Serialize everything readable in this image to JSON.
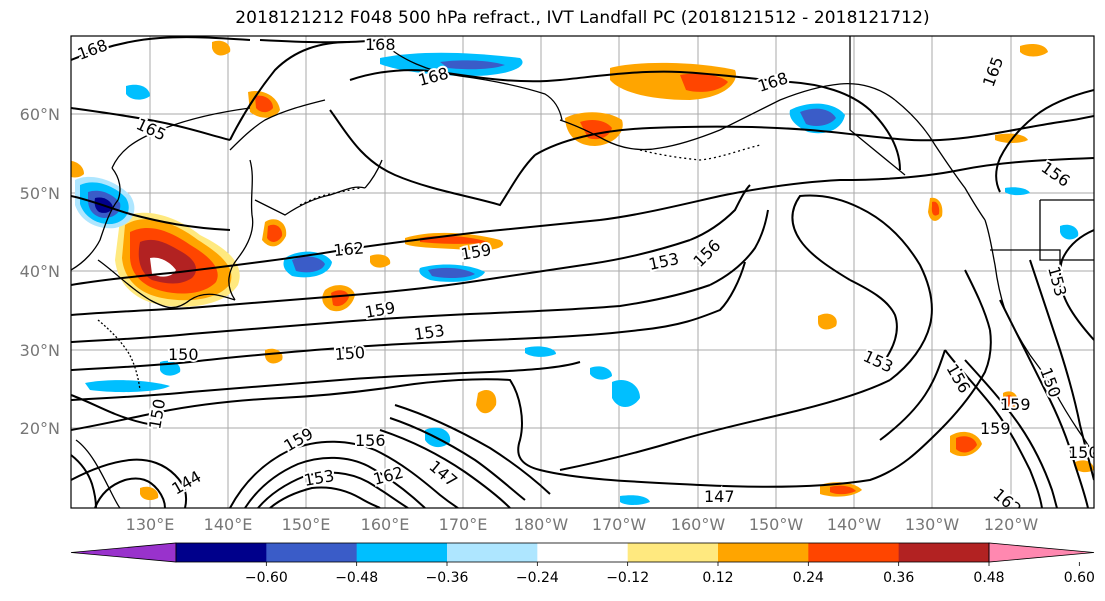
{
  "title": "2018121212 F048 500 hPa refract., IVT Landfall PC (2018121512 - 2018121712)",
  "lat_labels": [
    "60°N",
    "50°N",
    "40°N",
    "30°N",
    "20°N"
  ],
  "lon_labels": [
    "130°E",
    "140°E",
    "150°E",
    "160°E",
    "170°E",
    "180°W",
    "170°W",
    "160°W",
    "150°W",
    "140°W",
    "130°W",
    "120°W"
  ],
  "contour_labels": [
    "168",
    "168",
    "168",
    "168",
    "165",
    "165",
    "162",
    "159",
    "159",
    "153",
    "156",
    "153",
    "150",
    "150",
    "150",
    "159",
    "153",
    "156",
    "162",
    "147",
    "144",
    "147",
    "153",
    "159",
    "156",
    "150",
    "153",
    "156",
    "150",
    "162",
    "159"
  ],
  "colorbar": {
    "colors": [
      "#9932CC",
      "#00008B",
      "#3A5CC8",
      "#00BFFF",
      "#AEE6FF",
      "#FFFFFF",
      "#FFE97F",
      "#FFA500",
      "#FF4500",
      "#B22222",
      "#FF88B0"
    ],
    "ticks": [
      "−0.60",
      "−0.48",
      "−0.36",
      "−0.24",
      "−0.12",
      "0.12",
      "0.24",
      "0.36",
      "0.48",
      "0.60"
    ]
  },
  "fill_colors": {
    "orange": "#FFA500",
    "red": "#FF4500",
    "yellow": "#FFE97F",
    "dark_red": "#B22222",
    "light_blue": "#AEE6FF",
    "blue": "#00BFFF",
    "med_blue": "#3A5CC8",
    "navy": "#00008B"
  }
}
